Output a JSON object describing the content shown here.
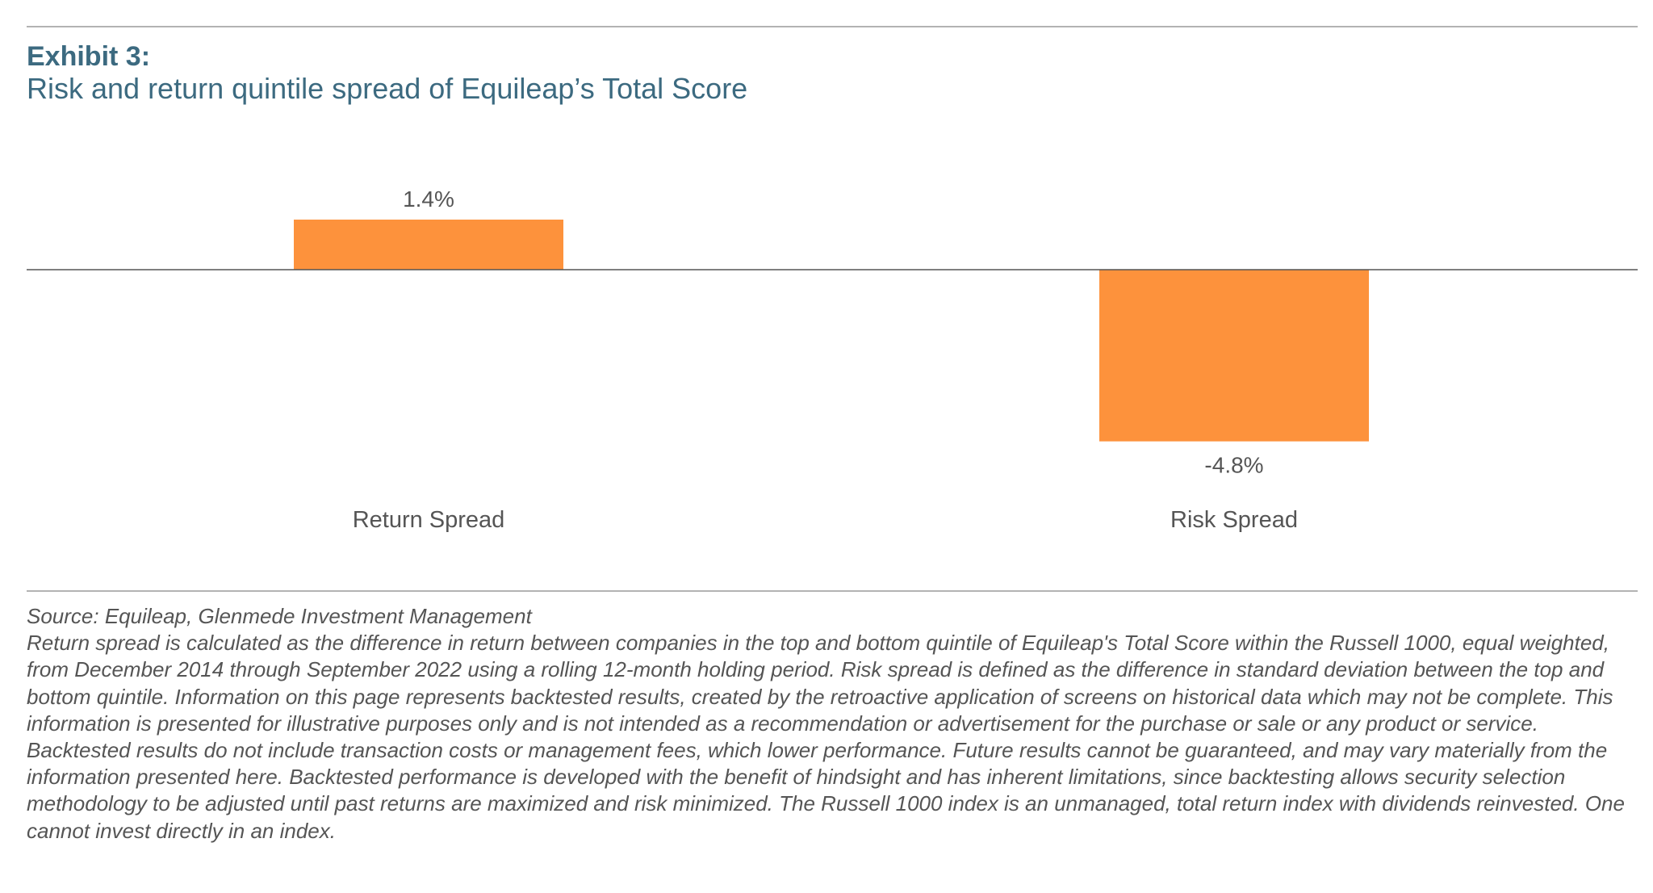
{
  "header": {
    "exhibit": "Exhibit 3:",
    "subtitle": "Risk and return quintile spread of Equileap’s Total Score"
  },
  "colors": {
    "bar": "#fd923c",
    "title": "#3c6a80",
    "text": "#555555",
    "rule": "#b3b3b3"
  },
  "chart_data": {
    "type": "bar",
    "categories": [
      "Return Spread",
      "Risk Spread"
    ],
    "values": [
      1.4,
      -4.8
    ],
    "value_labels": [
      "1.4%",
      "-4.8%"
    ],
    "title": "Risk and return quintile spread of Equileap’s Total Score",
    "xlabel": "",
    "ylabel": "",
    "unit": "%",
    "ylim": [
      -4.8,
      1.4
    ],
    "grid": false,
    "legend": "none",
    "zero_line": true
  },
  "footnote": {
    "source": "Source: Equileap, Glenmede Investment Management",
    "body": "Return spread is calculated as the difference in return between companies in the top and bottom quintile of Equileap's Total Score within the Russell 1000, equal weighted, from December 2014 through September 2022 using a rolling 12-month holding period. Risk spread is defined as the difference in standard deviation between the top and bottom quintile. Information on this page represents backtested results, created by the retroactive application of screens on historical data which may not be complete. This information is presented for illustrative purposes only and is not intended as a recommendation or advertisement for the purchase or sale or any product or service. Backtested results do not include transaction costs or management fees, which lower performance. Future results cannot be guaranteed, and may vary materially from the information presented here. Backtested performance is developed with the benefit of hindsight and has inherent limitations, since backtesting allows security selection methodology to be adjusted until past returns are maximized and risk minimized. The Russell 1000 index is an unmanaged, total return index with dividends reinvested. One cannot invest directly in an index."
  }
}
